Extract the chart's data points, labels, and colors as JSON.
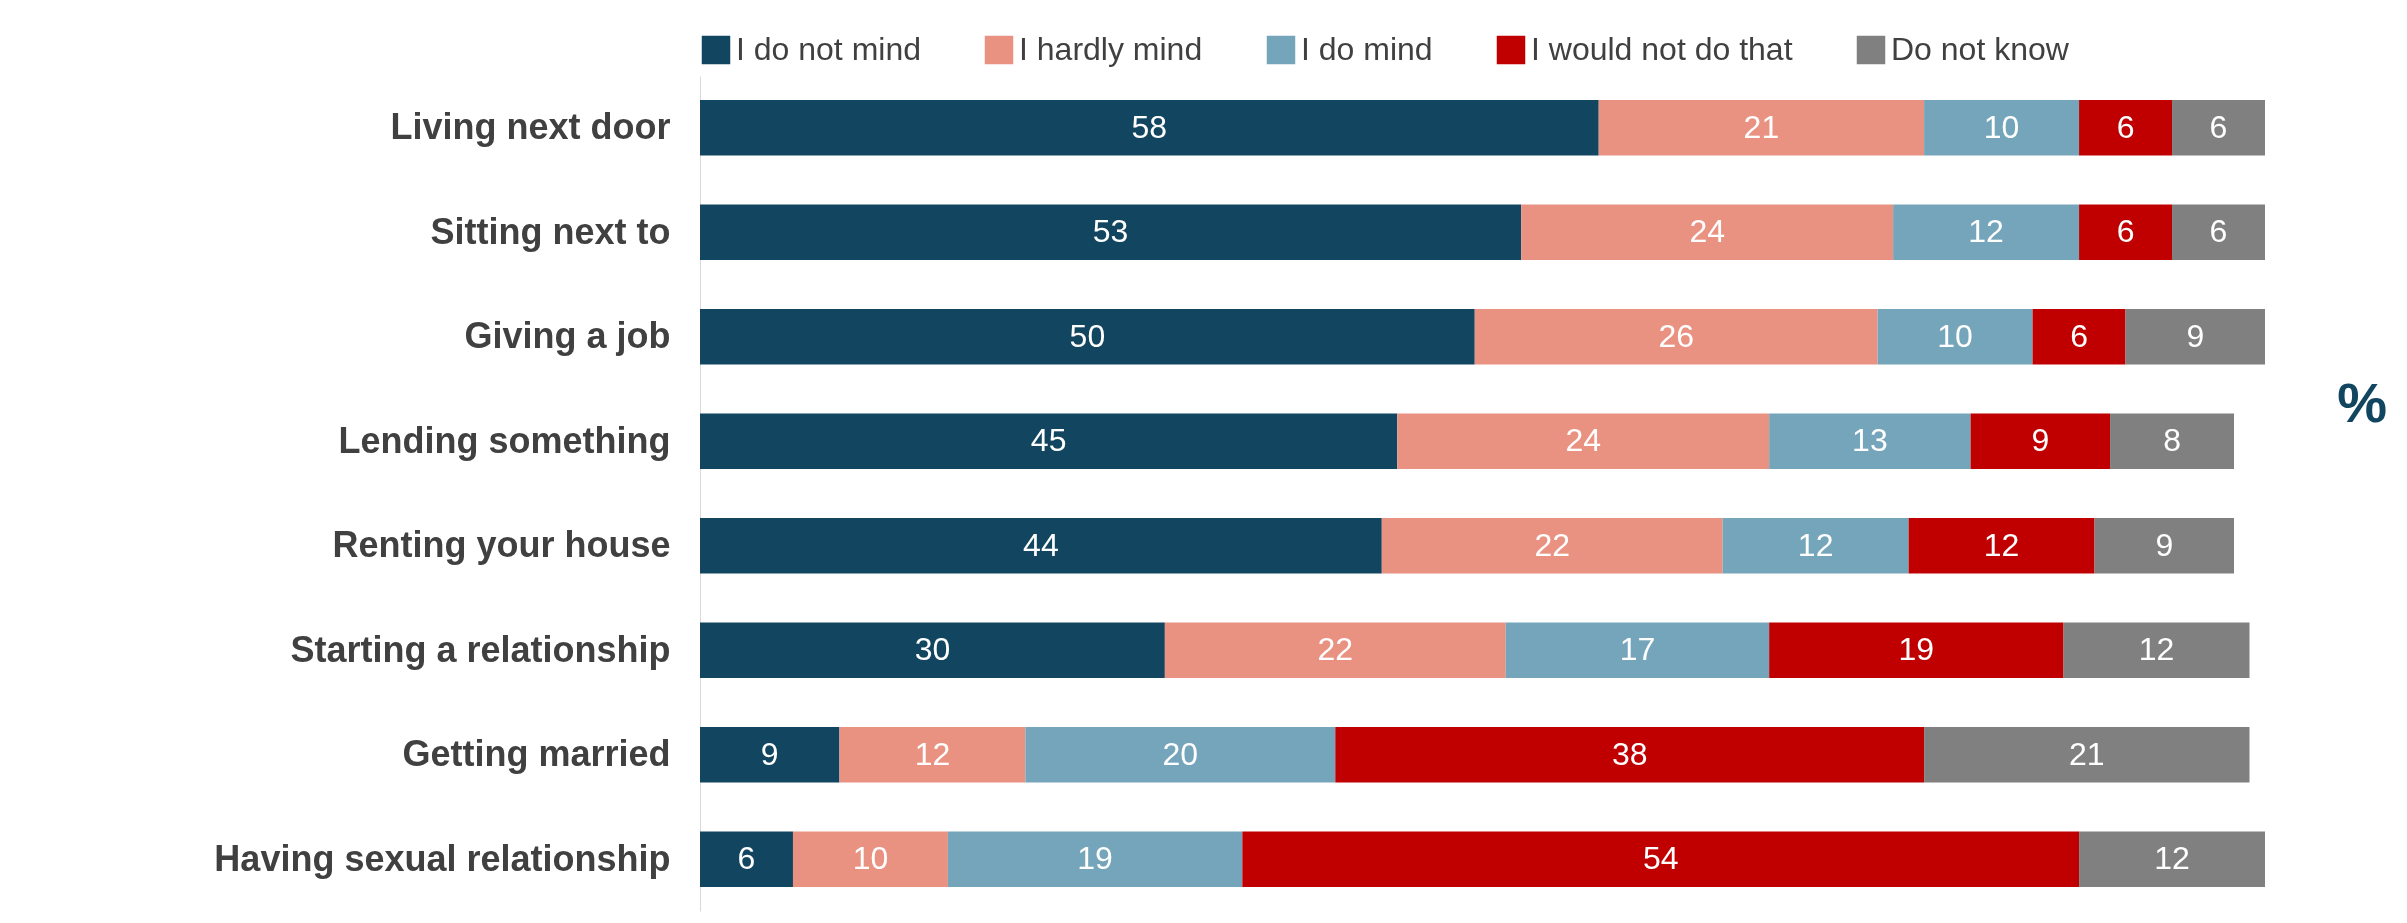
{
  "chart_data": {
    "type": "bar",
    "orientation": "horizontal",
    "stacked": true,
    "data_labels": true,
    "legend": "top",
    "tick_labels": "y",
    "xlim": [
      0,
      101
    ],
    "categories": [
      "Living next door",
      "Sitting next to",
      "Giving a job",
      "Lending something",
      "Renting your house",
      "Starting a relationship",
      "Getting married",
      "Having sexual relationship"
    ],
    "series": [
      {
        "name": "I do not mind",
        "color": "#124660",
        "values": [
          58,
          53,
          50,
          45,
          44,
          30,
          9,
          6
        ]
      },
      {
        "name": "I hardly mind",
        "color": "#ea9282",
        "values": [
          21,
          24,
          26,
          24,
          22,
          22,
          12,
          10
        ]
      },
      {
        "name": "I do mind",
        "color": "#74a5ba",
        "values": [
          10,
          12,
          10,
          13,
          12,
          17,
          20,
          19
        ]
      },
      {
        "name": "I would not do that",
        "color": "#c00000",
        "values": [
          6,
          6,
          6,
          9,
          12,
          19,
          38,
          54
        ]
      },
      {
        "name": "Do not know",
        "color": "#808080",
        "values": [
          6,
          6,
          9,
          8,
          9,
          12,
          21,
          12
        ]
      }
    ],
    "annotations": [
      "%"
    ]
  }
}
